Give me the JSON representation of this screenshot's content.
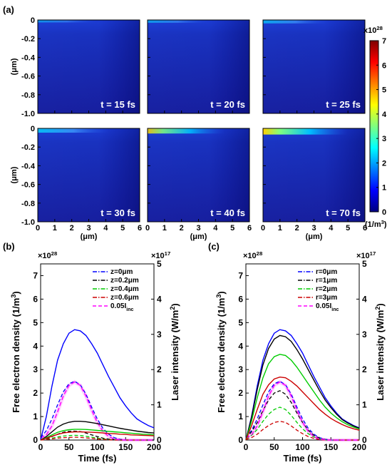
{
  "panel_labels": [
    "(a)",
    "(b)",
    "(c)"
  ],
  "colorbar": {
    "multiplier": "x10",
    "exponent": "28",
    "ticks": [
      "0",
      "1",
      "2",
      "3",
      "4",
      "5",
      "6",
      "7"
    ],
    "unit": "(1/m",
    "unit_exp": "3",
    "unit_close": ")",
    "colors": [
      "#00007f",
      "#0000ff",
      "#007fff",
      "#00ffff",
      "#7fff7f",
      "#ffff00",
      "#ff7f00",
      "#ff0000",
      "#7f0000"
    ]
  },
  "chart_data": [
    {
      "type": "heatmap",
      "panel": "(a)",
      "xlabel": "(μm)",
      "ylabel": "(μm)",
      "xticks": [
        "0",
        "1",
        "2",
        "3",
        "4",
        "5",
        "6"
      ],
      "yticks": [
        "0",
        "-0.2",
        "-0.4",
        "-0.6",
        "-0.8",
        "-1.0"
      ],
      "xlim": [
        0,
        6
      ],
      "ylim": [
        -1.0,
        0
      ],
      "clim": [
        0,
        7
      ],
      "subplots": [
        {
          "time": "t = 15 fs",
          "peak": 0.4
        },
        {
          "time": "t = 20 fs",
          "peak": 0.8
        },
        {
          "time": "t = 25 fs",
          "peak": 1.5
        },
        {
          "time": "t = 30 fs",
          "peak": 2.5
        },
        {
          "time": "t = 40 fs",
          "peak": 3.5
        },
        {
          "time": "t = 70 fs",
          "peak": 4.7
        }
      ]
    },
    {
      "type": "line",
      "panel": "(b)",
      "xlabel": "Time (fs)",
      "ylabel": "Free  electron  density  (1/m",
      "ylabel_exp": "3",
      "ylabel_close": ")",
      "y2label": "Laser  intensity  (W/m",
      "y2label_exp": "2",
      "y2label_close": ")",
      "xlim": [
        0,
        200
      ],
      "ylim": [
        0,
        7.5
      ],
      "y2lim": [
        0,
        5
      ],
      "xticks": [
        "0",
        "50",
        "100",
        "150",
        "200"
      ],
      "yticks": [
        "0",
        "1",
        "2",
        "3",
        "4",
        "5",
        "6",
        "7"
      ],
      "y2ticks": [
        "0",
        "1",
        "2",
        "3",
        "4",
        "5"
      ],
      "y_multiplier": "×10",
      "y_multiplier_exp": "28",
      "y2_multiplier": "×10",
      "y2_multiplier_exp": "17",
      "x": [
        0,
        10,
        20,
        30,
        40,
        50,
        60,
        70,
        80,
        90,
        100,
        110,
        120,
        130,
        140,
        150,
        160,
        170,
        180,
        190,
        200
      ],
      "series": [
        {
          "name": "z=0μm",
          "color": "#0000ff",
          "dash": "dashdot",
          "values": [
            0,
            1.0,
            2.3,
            3.4,
            4.1,
            4.55,
            4.7,
            4.65,
            4.45,
            4.1,
            3.7,
            3.2,
            2.7,
            2.25,
            1.8,
            1.45,
            1.15,
            0.9,
            0.75,
            0.62,
            0.52
          ]
        },
        {
          "name": "z=0.2μm",
          "color": "#000000",
          "dash": "dashdot",
          "values": [
            0,
            0.15,
            0.35,
            0.55,
            0.68,
            0.76,
            0.8,
            0.8,
            0.78,
            0.74,
            0.7,
            0.65,
            0.6,
            0.55,
            0.5,
            0.46,
            0.42,
            0.38,
            0.35,
            0.32,
            0.3
          ]
        },
        {
          "name": "z=0.4μm",
          "color": "#00cc00",
          "dash": "dashdot",
          "values": [
            0,
            0.1,
            0.22,
            0.33,
            0.4,
            0.44,
            0.46,
            0.46,
            0.45,
            0.43,
            0.41,
            0.39,
            0.37,
            0.35,
            0.33,
            0.31,
            0.29,
            0.27,
            0.25,
            0.24,
            0.22
          ]
        },
        {
          "name": "z=0.6μm",
          "color": "#cc0000",
          "dash": "dashdot",
          "values": [
            0,
            0.08,
            0.16,
            0.24,
            0.3,
            0.33,
            0.35,
            0.35,
            0.34,
            0.33,
            0.32,
            0.3,
            0.28,
            0.27,
            0.25,
            0.24,
            0.22,
            0.21,
            0.2,
            0.19,
            0.18
          ]
        }
      ],
      "intensity": {
        "name": "0.05I",
        "name_sub": "inc",
        "color": "#ff00ff",
        "values_1e17": [
          0.05,
          0.15,
          0.4,
          0.8,
          1.25,
          1.55,
          1.65,
          1.55,
          1.25,
          0.85,
          0.5,
          0.25,
          0.1,
          0.03,
          0.01,
          0,
          0,
          0,
          0,
          0,
          0
        ]
      },
      "dashed_density": [
        {
          "color": "#0000ff",
          "values": [
            0.1,
            0.4,
            0.9,
            1.5,
            2.05,
            2.4,
            2.5,
            2.35,
            1.95,
            1.4,
            0.9,
            0.5,
            0.25,
            0.1,
            0.03,
            0,
            0,
            0,
            0,
            0,
            0
          ]
        },
        {
          "color": "#000000",
          "values": [
            0,
            0.05,
            0.15,
            0.25,
            0.33,
            0.37,
            0.38,
            0.36,
            0.3,
            0.22,
            0.15,
            0.08,
            0.04,
            0.02,
            0,
            0,
            0,
            0,
            0,
            0,
            0
          ]
        },
        {
          "color": "#00cc00",
          "values": [
            0,
            0.03,
            0.08,
            0.13,
            0.17,
            0.19,
            0.2,
            0.19,
            0.16,
            0.12,
            0.08,
            0.05,
            0.02,
            0.01,
            0,
            0,
            0,
            0,
            0,
            0,
            0
          ]
        },
        {
          "color": "#cc0000",
          "values": [
            0,
            0.02,
            0.05,
            0.08,
            0.1,
            0.11,
            0.12,
            0.11,
            0.09,
            0.07,
            0.05,
            0.03,
            0.01,
            0,
            0,
            0,
            0,
            0,
            0,
            0,
            0
          ]
        }
      ]
    },
    {
      "type": "line",
      "panel": "(c)",
      "xlabel": "Time (fs)",
      "ylabel": "Free  electron  density  (1/m",
      "ylabel_exp": "3",
      "ylabel_close": ")",
      "y2label": "Laser  intensity  (W/m",
      "y2label_exp": "2",
      "y2label_close": ")",
      "xlim": [
        0,
        200
      ],
      "ylim": [
        0,
        7.5
      ],
      "y2lim": [
        0,
        5
      ],
      "xticks": [
        "0",
        "50",
        "100",
        "150",
        "200"
      ],
      "yticks": [
        "0",
        "1",
        "2",
        "3",
        "4",
        "5",
        "6",
        "7"
      ],
      "y2ticks": [
        "0",
        "1",
        "2",
        "3",
        "4",
        "5"
      ],
      "y_multiplier": "×10",
      "y_multiplier_exp": "28",
      "y2_multiplier": "×10",
      "y2_multiplier_exp": "17",
      "x": [
        0,
        10,
        20,
        30,
        40,
        50,
        60,
        70,
        80,
        90,
        100,
        110,
        120,
        130,
        140,
        150,
        160,
        170,
        180,
        190,
        200
      ],
      "series": [
        {
          "name": "r=0μm",
          "color": "#0000ff",
          "dash": "dashdot",
          "values": [
            0,
            1.0,
            2.3,
            3.4,
            4.1,
            4.55,
            4.7,
            4.65,
            4.45,
            4.1,
            3.7,
            3.2,
            2.7,
            2.25,
            1.8,
            1.45,
            1.15,
            0.9,
            0.75,
            0.62,
            0.52
          ]
        },
        {
          "name": "r=1μm",
          "color": "#000000",
          "dash": "dashdot",
          "values": [
            0,
            0.95,
            2.15,
            3.2,
            3.9,
            4.3,
            4.45,
            4.4,
            4.2,
            3.85,
            3.45,
            3.0,
            2.55,
            2.1,
            1.7,
            1.38,
            1.1,
            0.87,
            0.72,
            0.6,
            0.5
          ]
        },
        {
          "name": "r=2μm",
          "color": "#00cc00",
          "dash": "dashdot",
          "values": [
            0,
            0.8,
            1.8,
            2.65,
            3.25,
            3.55,
            3.65,
            3.6,
            3.4,
            3.1,
            2.75,
            2.4,
            2.05,
            1.7,
            1.4,
            1.15,
            0.95,
            0.78,
            0.65,
            0.55,
            0.47
          ]
        },
        {
          "name": "r=3μm",
          "color": "#cc0000",
          "dash": "dashdot",
          "values": [
            0,
            0.6,
            1.3,
            1.95,
            2.35,
            2.6,
            2.68,
            2.65,
            2.5,
            2.3,
            2.05,
            1.8,
            1.55,
            1.3,
            1.1,
            0.92,
            0.78,
            0.66,
            0.56,
            0.48,
            0.42
          ]
        }
      ],
      "intensity": {
        "name": "0.05I",
        "name_sub": "inc",
        "color": "#ff00ff",
        "values_1e17": [
          0.05,
          0.15,
          0.4,
          0.8,
          1.25,
          1.55,
          1.65,
          1.55,
          1.25,
          0.85,
          0.5,
          0.25,
          0.1,
          0.03,
          0.01,
          0,
          0,
          0,
          0,
          0,
          0
        ]
      },
      "dashed_density": [
        {
          "color": "#0000ff",
          "values": [
            0.1,
            0.4,
            0.9,
            1.5,
            2.05,
            2.4,
            2.5,
            2.35,
            1.95,
            1.4,
            0.9,
            0.5,
            0.25,
            0.1,
            0.03,
            0,
            0,
            0,
            0,
            0,
            0
          ]
        },
        {
          "color": "#000000",
          "values": [
            0.08,
            0.35,
            0.75,
            1.25,
            1.7,
            2.0,
            2.1,
            1.95,
            1.6,
            1.15,
            0.75,
            0.42,
            0.2,
            0.08,
            0.02,
            0,
            0,
            0,
            0,
            0,
            0
          ]
        },
        {
          "color": "#00cc00",
          "values": [
            0.05,
            0.2,
            0.45,
            0.8,
            1.1,
            1.3,
            1.4,
            1.3,
            1.05,
            0.75,
            0.48,
            0.27,
            0.13,
            0.05,
            0.01,
            0,
            0,
            0,
            0,
            0,
            0
          ]
        },
        {
          "color": "#cc0000",
          "values": [
            0.02,
            0.1,
            0.25,
            0.45,
            0.62,
            0.75,
            0.8,
            0.75,
            0.6,
            0.42,
            0.27,
            0.15,
            0.07,
            0.02,
            0,
            0,
            0,
            0,
            0,
            0,
            0
          ]
        }
      ]
    }
  ]
}
